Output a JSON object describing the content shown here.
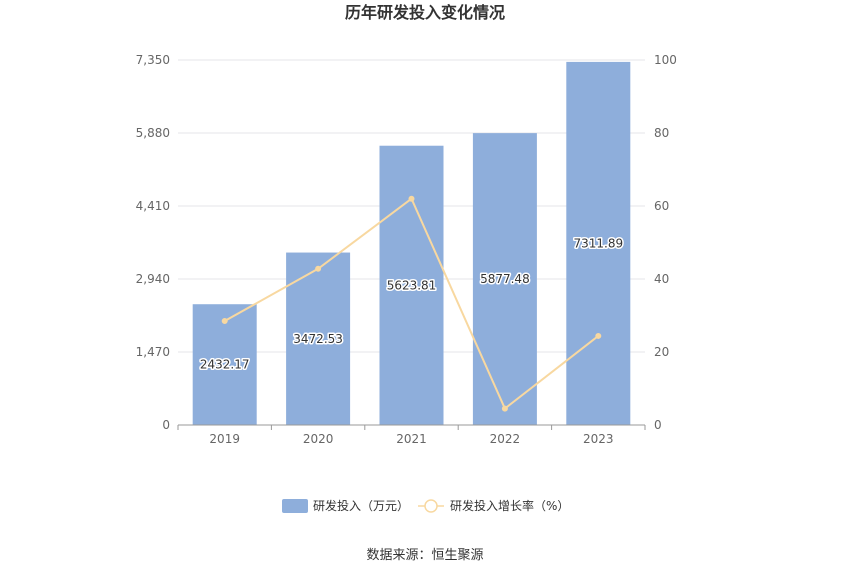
{
  "chart_data": {
    "type": "bar",
    "title": "历年研发投入变化情况",
    "categories": [
      "2019",
      "2020",
      "2021",
      "2022",
      "2023"
    ],
    "series": [
      {
        "name": "研发投入（万元）",
        "type": "bar",
        "axis": "left",
        "color": "#8eaedb",
        "values": [
          2432.17,
          3472.53,
          5623.81,
          5877.48,
          7311.89
        ],
        "labels": [
          "2432.17",
          "3472.53",
          "5623.81",
          "5877.48",
          "7311.89"
        ]
      },
      {
        "name": "研发投入增长率（%）",
        "type": "line",
        "axis": "right",
        "color": "#f8d8a0",
        "values": [
          28.5,
          42.8,
          62.0,
          4.5,
          24.4
        ]
      }
    ],
    "y_left": {
      "ticks": [
        "0",
        "1,470",
        "2,940",
        "4,410",
        "5,880",
        "7,350"
      ],
      "ylim": [
        0,
        7350
      ]
    },
    "y_right": {
      "ticks": [
        "0",
        "20",
        "40",
        "60",
        "80",
        "100"
      ],
      "ylim": [
        0,
        100
      ]
    },
    "grid": true,
    "legend_position": "bottom"
  },
  "source_note": "数据来源：恒生聚源"
}
